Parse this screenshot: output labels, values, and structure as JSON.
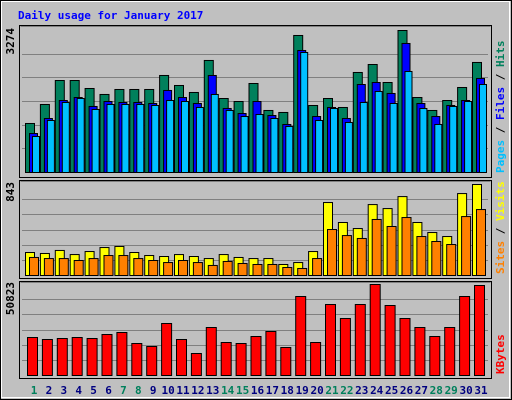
{
  "title": "Daily usage for January 2017",
  "legend_separator": " / ",
  "chart_data": [
    {
      "type": "bar",
      "ylim": [
        0,
        3274
      ],
      "yticks": [
        3274
      ],
      "series": [
        {
          "name": "Hits",
          "color": "#00805c",
          "values": [
            1130,
            1568,
            2121,
            2121,
            1937,
            1799,
            1914,
            1914,
            1914,
            2237,
            2006,
            1845,
            2583,
            1706,
            1637,
            2052,
            1430,
            1384,
            3159,
            1545,
            1706,
            1499,
            2306,
            2490,
            2075,
            3274,
            1729,
            1430,
            1660,
            1960,
            2537
          ]
        },
        {
          "name": "Files",
          "color": "#0000ff",
          "values": [
            899,
            1245,
            1660,
            1729,
            1522,
            1637,
            1614,
            1614,
            1591,
            1891,
            1729,
            1591,
            2237,
            1476,
            1360,
            1637,
            1314,
            1107,
            2813,
            1291,
            1499,
            1245,
            2029,
            2075,
            1822,
            2975,
            1591,
            1291,
            1545,
            1660,
            2168
          ]
        },
        {
          "name": "Pages",
          "color": "#00c0ff",
          "values": [
            830,
            1199,
            1614,
            1706,
            1453,
            1568,
            1568,
            1568,
            1545,
            1660,
            1637,
            1499,
            1799,
            1430,
            1291,
            1337,
            1245,
            1061,
            2767,
            1199,
            1476,
            1153,
            1614,
            1868,
            1591,
            2329,
            1476,
            1107,
            1522,
            1637,
            2029
          ]
        }
      ]
    },
    {
      "type": "bar",
      "ylim": [
        0,
        843
      ],
      "yticks": [
        843
      ],
      "series": [
        {
          "name": "Visits",
          "color": "#ffff00",
          "values": [
            213,
            204,
            232,
            194,
            222,
            259,
            269,
            213,
            185,
            176,
            194,
            176,
            157,
            194,
            167,
            157,
            157,
            102,
            120,
            222,
            676,
            491,
            435,
            657,
            620,
            731,
            491,
            398,
            361,
            759,
            843
          ]
        },
        {
          "name": "Sites",
          "color": "#ff8000",
          "values": [
            167,
            157,
            157,
            139,
            157,
            185,
            185,
            157,
            139,
            120,
            139,
            120,
            93,
            130,
            111,
            102,
            102,
            74,
            65,
            157,
            426,
            370,
            343,
            519,
            454,
            537,
            361,
            315,
            287,
            546,
            611
          ]
        }
      ]
    },
    {
      "type": "bar",
      "ylim": [
        0,
        50823
      ],
      "yticks": [
        50823
      ],
      "categories": [
        "1",
        "2",
        "3",
        "4",
        "5",
        "6",
        "7",
        "8",
        "9",
        "10",
        "11",
        "12",
        "13",
        "14",
        "15",
        "16",
        "17",
        "18",
        "19",
        "20",
        "21",
        "22",
        "23",
        "24",
        "25",
        "26",
        "27",
        "28",
        "29",
        "30",
        "31"
      ],
      "category_colors": [
        "#00805c",
        "#000080",
        "#000080",
        "#000080",
        "#000080",
        "#000080",
        "#00805c",
        "#00805c",
        "#000080",
        "#000080",
        "#000080",
        "#000080",
        "#000080",
        "#00805c",
        "#00805c",
        "#000080",
        "#000080",
        "#000080",
        "#000080",
        "#000080",
        "#00805c",
        "#00805c",
        "#000080",
        "#000080",
        "#000080",
        "#000080",
        "#000080",
        "#00805c",
        "#00805c",
        "#000080",
        "#000080"
      ],
      "series": [
        {
          "name": "KBytes",
          "color": "#ff0000",
          "values": [
            21222,
            20106,
            20664,
            21222,
            20664,
            22898,
            24015,
            17872,
            16196,
            29041,
            20106,
            12287,
            26807,
            18430,
            17872,
            21781,
            24573,
            15637,
            44120,
            18430,
            39652,
            31833,
            39652,
            50823,
            39094,
            31833,
            26807,
            21781,
            26807,
            44120,
            50264
          ]
        }
      ]
    }
  ]
}
